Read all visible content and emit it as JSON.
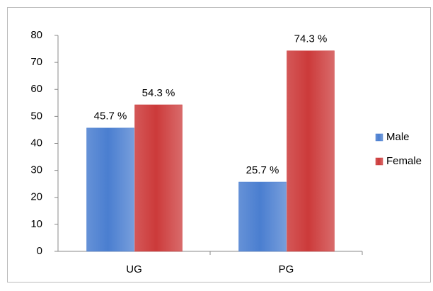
{
  "chart_data": {
    "type": "bar",
    "categories": [
      "UG",
      "PG"
    ],
    "series": [
      {
        "name": "Male",
        "color": "#4a7ed0",
        "values": [
          45.7,
          25.7
        ],
        "value_labels": [
          "45.7 %",
          "25.7 %"
        ]
      },
      {
        "name": "Female",
        "color": "#cc3a3a",
        "values": [
          54.3,
          74.3
        ],
        "value_labels": [
          "54.3 %",
          "74.3 %"
        ]
      }
    ],
    "ylim": [
      0,
      80
    ],
    "yticks": [
      0,
      10,
      20,
      30,
      40,
      50,
      60,
      70,
      80
    ],
    "grid": false,
    "legend": "right"
  }
}
